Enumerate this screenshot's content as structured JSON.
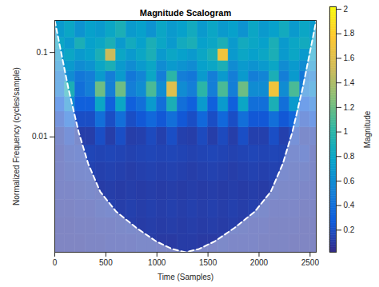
{
  "chart_data": {
    "type": "heatmap",
    "title": "Magnitude Scalogram",
    "xlabel": "Time (Samples)",
    "ylabel": "Normalized Frequency (cycles/sample)",
    "xlim": [
      0,
      2560
    ],
    "xticks": [
      0,
      500,
      1000,
      1500,
      2000,
      2500
    ],
    "ylim": [
      0.00043,
      0.24
    ],
    "yticks": [
      0.01,
      0.1
    ],
    "log": "y",
    "time_edges": [
      0,
      100,
      200,
      300,
      400,
      500,
      600,
      700,
      800,
      900,
      1000,
      1100,
      1200,
      1300,
      1400,
      1500,
      1600,
      1700,
      1800,
      1900,
      2000,
      2100,
      2200,
      2300,
      2400,
      2500,
      2560
    ],
    "frequency_edges": [
      0.00043,
      0.0007,
      0.0011,
      0.0018,
      0.003,
      0.005,
      0.008,
      0.013,
      0.02,
      0.03,
      0.045,
      0.06,
      0.08,
      0.11,
      0.15,
      0.24
    ],
    "magnitude": [
      [
        0.08,
        0.08,
        0.08,
        0.09,
        0.09,
        0.1,
        0.1,
        0.1,
        0.11,
        0.11,
        0.1,
        0.1,
        0.11,
        0.11,
        0.1,
        0.1,
        0.11,
        0.1,
        0.1,
        0.1,
        0.09,
        0.09,
        0.09,
        0.08,
        0.08,
        0.08
      ],
      [
        0.08,
        0.08,
        0.09,
        0.09,
        0.1,
        0.1,
        0.11,
        0.12,
        0.11,
        0.12,
        0.11,
        0.12,
        0.11,
        0.12,
        0.11,
        0.12,
        0.11,
        0.12,
        0.11,
        0.1,
        0.1,
        0.09,
        0.09,
        0.09,
        0.08,
        0.08
      ],
      [
        0.09,
        0.09,
        0.1,
        0.1,
        0.12,
        0.13,
        0.12,
        0.13,
        0.12,
        0.13,
        0.12,
        0.13,
        0.12,
        0.13,
        0.12,
        0.13,
        0.12,
        0.13,
        0.12,
        0.13,
        0.12,
        0.1,
        0.1,
        0.1,
        0.09,
        0.09
      ],
      [
        0.1,
        0.1,
        0.11,
        0.12,
        0.11,
        0.12,
        0.11,
        0.12,
        0.11,
        0.12,
        0.11,
        0.12,
        0.11,
        0.12,
        0.11,
        0.12,
        0.11,
        0.12,
        0.11,
        0.12,
        0.11,
        0.12,
        0.11,
        0.11,
        0.1,
        0.1
      ],
      [
        0.1,
        0.12,
        0.13,
        0.14,
        0.13,
        0.14,
        0.13,
        0.12,
        0.13,
        0.14,
        0.13,
        0.14,
        0.13,
        0.12,
        0.13,
        0.14,
        0.13,
        0.12,
        0.13,
        0.14,
        0.13,
        0.14,
        0.13,
        0.12,
        0.12,
        0.1
      ],
      [
        0.1,
        0.14,
        0.15,
        0.16,
        0.15,
        0.16,
        0.15,
        0.14,
        0.15,
        0.16,
        0.15,
        0.16,
        0.15,
        0.14,
        0.15,
        0.16,
        0.15,
        0.14,
        0.15,
        0.16,
        0.15,
        0.16,
        0.15,
        0.14,
        0.15,
        0.1
      ],
      [
        0.12,
        0.18,
        0.12,
        0.12,
        0.2,
        0.12,
        0.2,
        0.12,
        0.13,
        0.18,
        0.13,
        0.2,
        0.13,
        0.12,
        0.18,
        0.12,
        0.18,
        0.12,
        0.2,
        0.13,
        0.13,
        0.2,
        0.13,
        0.18,
        0.12,
        0.13
      ],
      [
        0.2,
        0.35,
        0.2,
        0.2,
        0.4,
        0.2,
        0.4,
        0.2,
        0.25,
        0.35,
        0.25,
        0.4,
        0.25,
        0.2,
        0.35,
        0.2,
        0.35,
        0.2,
        0.4,
        0.25,
        0.25,
        0.4,
        0.25,
        0.35,
        0.2,
        0.25
      ],
      [
        0.3,
        0.6,
        0.3,
        0.3,
        0.8,
        0.3,
        0.8,
        0.3,
        0.4,
        0.7,
        0.4,
        0.9,
        0.4,
        0.3,
        0.7,
        0.3,
        0.7,
        0.3,
        0.8,
        0.4,
        0.4,
        0.9,
        0.4,
        0.7,
        0.3,
        0.4
      ],
      [
        0.5,
        0.9,
        0.4,
        0.5,
        1.2,
        0.5,
        1.2,
        0.5,
        0.6,
        1.1,
        0.6,
        1.6,
        0.6,
        0.5,
        1,
        0.5,
        1.1,
        0.5,
        1.2,
        0.6,
        0.6,
        1.7,
        0.6,
        1.1,
        0.5,
        0.6
      ],
      [
        0.5,
        0.6,
        0.45,
        0.5,
        0.7,
        0.5,
        0.7,
        0.45,
        0.55,
        0.8,
        0.5,
        1,
        0.5,
        0.45,
        0.7,
        0.5,
        0.7,
        0.5,
        0.7,
        0.5,
        0.55,
        0.9,
        0.5,
        0.7,
        0.45,
        0.5
      ],
      [
        0.6,
        0.7,
        0.6,
        0.65,
        0.8,
        0.9,
        0.7,
        0.6,
        0.7,
        0.8,
        0.6,
        0.7,
        0.65,
        0.6,
        0.75,
        0.8,
        0.9,
        0.6,
        0.7,
        0.65,
        0.7,
        0.8,
        0.6,
        0.7,
        0.6,
        0.65
      ],
      [
        0.7,
        0.8,
        0.7,
        0.75,
        0.9,
        1.5,
        0.8,
        0.7,
        0.8,
        0.9,
        0.7,
        0.8,
        0.75,
        0.7,
        0.8,
        0.9,
        1.7,
        0.7,
        0.8,
        0.75,
        0.8,
        0.9,
        0.7,
        0.8,
        0.7,
        0.75
      ],
      [
        0.8,
        0.7,
        0.9,
        0.75,
        0.8,
        0.9,
        0.7,
        0.85,
        0.75,
        0.9,
        0.8,
        0.7,
        0.85,
        0.9,
        0.75,
        0.8,
        0.9,
        0.7,
        0.85,
        0.8,
        0.75,
        0.9,
        0.7,
        0.8,
        0.85,
        0.75
      ],
      [
        0.7,
        0.8,
        0.65,
        0.75,
        0.7,
        0.8,
        0.9,
        0.7,
        0.75,
        0.65,
        0.8,
        0.7,
        0.75,
        0.85,
        0.7,
        0.8,
        0.7,
        0.75,
        0.65,
        0.8,
        0.7,
        0.75,
        0.85,
        0.7,
        0.8,
        0.7
      ]
    ],
    "colorbar": {
      "label": "Magnitude",
      "lim": [
        0.02,
        2.02
      ],
      "ticks": [
        0.2,
        0.4,
        0.6,
        0.8,
        1,
        1.2,
        1.4,
        1.6,
        1.8,
        2
      ],
      "colors": [
        "#352a87",
        "#0f5cdd",
        "#1481d6",
        "#06a4ca",
        "#2eb7a4",
        "#87bf77",
        "#d1bb59",
        "#fec832",
        "#f9fb0e"
      ]
    },
    "cone_of_influence": {
      "x": [
        0,
        55,
        133,
        234,
        328,
        445,
        602,
        797,
        992,
        1148,
        1280,
        1412,
        1568,
        1763,
        1958,
        2115,
        2232,
        2326,
        2427,
        2505,
        2560
      ],
      "y": [
        0.238,
        0.111,
        0.0377,
        0.0114,
        0.00478,
        0.00224,
        0.0013,
        0.00084,
        0.00058,
        0.00047,
        0.00043,
        0.00047,
        0.00058,
        0.00084,
        0.0013,
        0.00224,
        0.00478,
        0.0114,
        0.0377,
        0.111,
        0.238
      ],
      "color": "#ffffff",
      "line_style": "dashed"
    }
  }
}
